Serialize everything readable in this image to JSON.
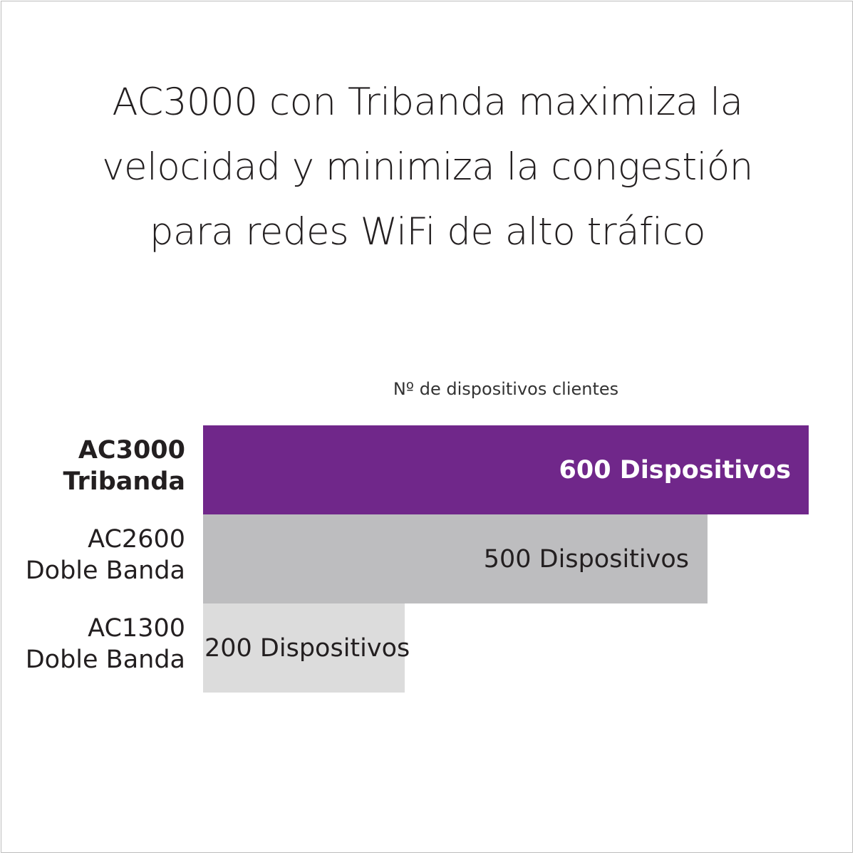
{
  "title_lines": [
    "AC3000 con Tribanda maximiza la",
    "velocidad y minimiza la congestión",
    "para redes WiFi de alto tráfico"
  ],
  "chart_data": {
    "type": "bar",
    "orientation": "horizontal",
    "axis_caption": "Nº de dispositivos clientes",
    "categories": [
      {
        "line1": "AC3000",
        "line2": "Tribanda",
        "bold": true
      },
      {
        "line1": "AC2600",
        "line2": "Doble Banda",
        "bold": false
      },
      {
        "line1": "AC1300",
        "line2": "Doble Banda",
        "bold": false
      }
    ],
    "values": [
      600,
      500,
      200
    ],
    "bar_labels": [
      "600 Dispositivos",
      "500 Dispositivos",
      "200 Dispositivos"
    ],
    "colors": [
      "#70278a",
      "#bdbdbf",
      "#dcdcdc"
    ],
    "label_colors": [
      "#ffffff",
      "#231f20",
      "#231f20"
    ],
    "xlim": [
      0,
      600
    ],
    "grid": false,
    "legend": "none"
  }
}
